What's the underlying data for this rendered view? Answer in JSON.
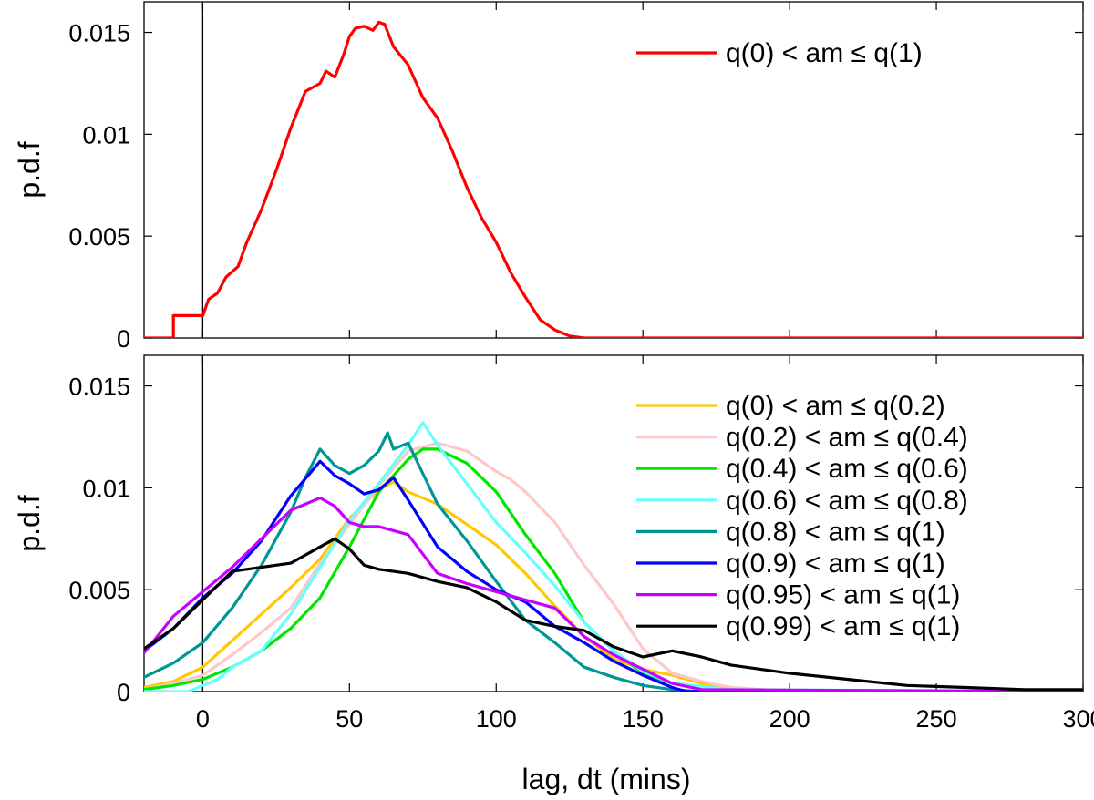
{
  "figure": {
    "xlabel": "lag, dt (mins)"
  },
  "chart_data": [
    {
      "type": "line",
      "title": "",
      "xlabel": "",
      "ylabel": "p.d.f",
      "xlim": [
        -20,
        300
      ],
      "ylim": [
        0,
        0.0165
      ],
      "xticks": [
        "0",
        "50",
        "100",
        "150",
        "200",
        "250",
        "300"
      ],
      "yticks": [
        "0",
        "0.005",
        "0.01",
        "0.015"
      ],
      "vline_x": 0,
      "legend_position": "top-right",
      "series": [
        {
          "name": "q(0) < am ≤ q(1)",
          "color": "#ff0000",
          "x": [
            -20,
            -10,
            -10,
            0,
            2,
            5,
            8,
            12,
            15,
            20,
            25,
            30,
            35,
            40,
            42,
            45,
            48,
            50,
            52,
            55,
            58,
            60,
            62,
            65,
            70,
            75,
            80,
            85,
            90,
            95,
            100,
            105,
            110,
            115,
            120,
            125,
            130,
            135,
            140,
            150,
            300
          ],
          "y": [
            0,
            0,
            0.0011,
            0.0011,
            0.0019,
            0.0022,
            0.003,
            0.0035,
            0.0047,
            0.0063,
            0.0082,
            0.0103,
            0.0121,
            0.0125,
            0.0131,
            0.0128,
            0.0139,
            0.0148,
            0.0152,
            0.0153,
            0.0151,
            0.0155,
            0.0154,
            0.0143,
            0.0134,
            0.0118,
            0.0108,
            0.0092,
            0.0074,
            0.0059,
            0.0047,
            0.0032,
            0.002,
            0.0009,
            0.0004,
            0.0001,
            0.0,
            0.0,
            0.0,
            0.0,
            0.0
          ]
        }
      ]
    },
    {
      "type": "line",
      "title": "",
      "xlabel": "lag, dt (mins)",
      "ylabel": "p.d.f",
      "xlim": [
        -20,
        300
      ],
      "ylim": [
        0,
        0.0165
      ],
      "xticks": [
        "0",
        "50",
        "100",
        "150",
        "200",
        "250",
        "300"
      ],
      "yticks": [
        "0",
        "0.005",
        "0.01",
        "0.015"
      ],
      "vline_x": 0,
      "legend_position": "right",
      "series": [
        {
          "name": "q(0) < am ≤ q(0.2)",
          "color": "#ffc800",
          "x": [
            -20,
            -10,
            0,
            10,
            20,
            30,
            40,
            50,
            60,
            65,
            70,
            80,
            90,
            100,
            110,
            120,
            130,
            140,
            150,
            160,
            170,
            180,
            200,
            300
          ],
          "y": [
            0.0002,
            0.0005,
            0.0012,
            0.0025,
            0.0038,
            0.0051,
            0.0065,
            0.0085,
            0.0099,
            0.0103,
            0.0098,
            0.0092,
            0.0082,
            0.0072,
            0.0058,
            0.0042,
            0.0027,
            0.0016,
            0.0011,
            0.0008,
            0.0004,
            0.0002,
            0.0,
            0.0
          ]
        },
        {
          "name": "q(0.2) < am ≤ q(0.4)",
          "color": "#ffc8c8",
          "x": [
            -20,
            -10,
            0,
            10,
            20,
            30,
            40,
            50,
            60,
            70,
            80,
            90,
            100,
            105,
            110,
            120,
            130,
            140,
            150,
            160,
            170,
            180,
            200,
            300
          ],
          "y": [
            0.0001,
            0.0004,
            0.0008,
            0.0018,
            0.0029,
            0.0041,
            0.0063,
            0.0082,
            0.0101,
            0.0118,
            0.0122,
            0.0118,
            0.0108,
            0.0104,
            0.0098,
            0.0083,
            0.0062,
            0.0043,
            0.0021,
            0.0009,
            0.0005,
            0.0002,
            0.0,
            0.0
          ]
        },
        {
          "name": "q(0.4) < am ≤ q(0.6)",
          "color": "#00e600",
          "x": [
            -20,
            -10,
            0,
            10,
            20,
            30,
            40,
            50,
            60,
            70,
            75,
            80,
            90,
            100,
            110,
            120,
            130,
            140,
            150,
            160,
            180,
            200,
            300
          ],
          "y": [
            0.0001,
            0.0003,
            0.0006,
            0.0012,
            0.002,
            0.0031,
            0.0046,
            0.0071,
            0.0098,
            0.0114,
            0.0119,
            0.0119,
            0.0112,
            0.0098,
            0.0077,
            0.0058,
            0.0034,
            0.002,
            0.0009,
            0.0004,
            0.0001,
            0.0,
            0.0
          ]
        },
        {
          "name": "q(0.6) < am ≤ q(0.8)",
          "color": "#64ffff",
          "x": [
            -20,
            -5,
            0,
            5,
            10,
            20,
            30,
            40,
            50,
            60,
            70,
            75,
            80,
            90,
            100,
            110,
            120,
            130,
            140,
            150,
            160,
            180,
            300
          ],
          "y": [
            0.0,
            0.0,
            0.0003,
            0.0006,
            0.0012,
            0.002,
            0.0038,
            0.0061,
            0.0084,
            0.0102,
            0.0121,
            0.0132,
            0.0121,
            0.0102,
            0.0083,
            0.0068,
            0.0052,
            0.0034,
            0.002,
            0.001,
            0.0004,
            0.0001,
            0.0
          ]
        },
        {
          "name": "q(0.8) < am ≤ q(1)",
          "color": "#009696",
          "x": [
            -20,
            -10,
            0,
            10,
            20,
            30,
            35,
            40,
            45,
            50,
            55,
            60,
            63,
            65,
            70,
            75,
            80,
            90,
            100,
            110,
            120,
            130,
            140,
            150,
            160,
            170,
            300
          ],
          "y": [
            0.0007,
            0.0014,
            0.0024,
            0.0041,
            0.0062,
            0.0088,
            0.0105,
            0.0119,
            0.0111,
            0.0107,
            0.0111,
            0.0118,
            0.0127,
            0.0119,
            0.0122,
            0.0107,
            0.0092,
            0.0074,
            0.0054,
            0.0035,
            0.0024,
            0.0012,
            0.0007,
            0.0003,
            0.0001,
            0.0,
            0.0
          ]
        },
        {
          "name": "q(0.9) < am ≤ q(1)",
          "color": "#0000ff",
          "x": [
            -20,
            -10,
            0,
            10,
            20,
            30,
            40,
            45,
            50,
            55,
            60,
            65,
            70,
            80,
            90,
            100,
            110,
            120,
            130,
            140,
            150,
            160,
            165,
            300
          ],
          "y": [
            0.002,
            0.0031,
            0.0046,
            0.0058,
            0.0074,
            0.0096,
            0.0113,
            0.0106,
            0.0102,
            0.0097,
            0.0099,
            0.0105,
            0.0094,
            0.0071,
            0.0059,
            0.005,
            0.0044,
            0.0032,
            0.0024,
            0.0015,
            0.0008,
            0.0002,
            0.0,
            0.0
          ]
        },
        {
          "name": "q(0.95) < am ≤ q(1)",
          "color": "#c800ff",
          "x": [
            -20,
            -10,
            0,
            10,
            20,
            30,
            40,
            45,
            50,
            55,
            60,
            70,
            80,
            90,
            100,
            110,
            120,
            130,
            140,
            150,
            160,
            170,
            300
          ],
          "y": [
            0.0019,
            0.0037,
            0.0049,
            0.0061,
            0.0075,
            0.0089,
            0.0095,
            0.0091,
            0.0083,
            0.0081,
            0.0081,
            0.0077,
            0.0058,
            0.0053,
            0.0049,
            0.0045,
            0.0041,
            0.0027,
            0.0018,
            0.0011,
            0.0004,
            0.0001,
            0.0
          ]
        },
        {
          "name": "q(0.99) < am ≤ q(1)",
          "color": "#000000",
          "x": [
            -20,
            -10,
            0,
            10,
            20,
            30,
            40,
            45,
            50,
            55,
            60,
            70,
            80,
            90,
            100,
            110,
            120,
            130,
            140,
            150,
            160,
            170,
            180,
            200,
            220,
            240,
            260,
            280,
            300
          ],
          "y": [
            0.0021,
            0.0031,
            0.0045,
            0.0059,
            0.0061,
            0.0063,
            0.0071,
            0.0075,
            0.007,
            0.0062,
            0.006,
            0.0058,
            0.0054,
            0.0051,
            0.0044,
            0.0035,
            0.0032,
            0.003,
            0.0022,
            0.0017,
            0.002,
            0.0017,
            0.0013,
            0.0009,
            0.0006,
            0.0003,
            0.0002,
            0.0001,
            0.0001
          ]
        }
      ]
    }
  ]
}
